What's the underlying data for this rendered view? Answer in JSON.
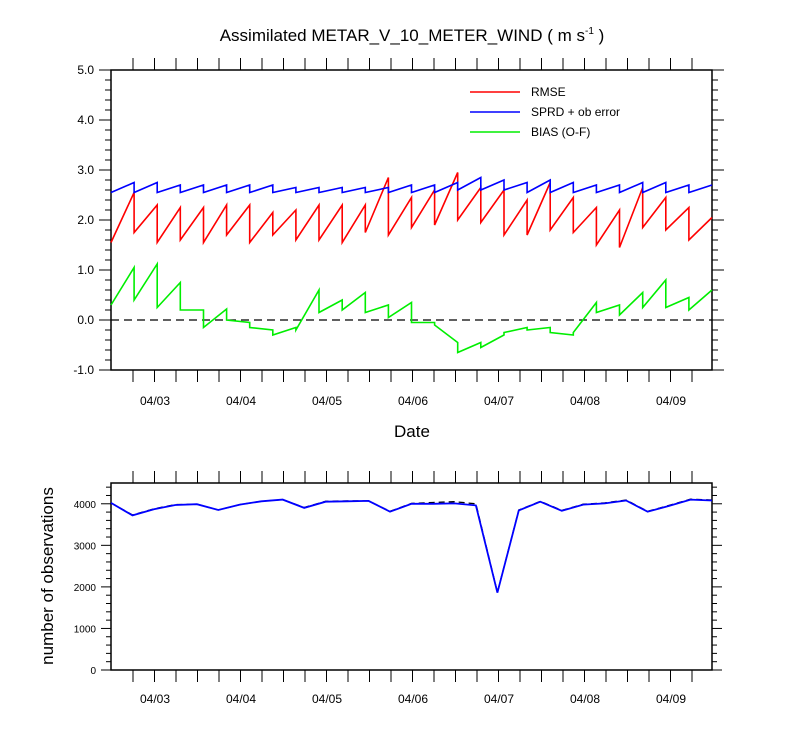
{
  "colors": {
    "rmse": "#ff0000",
    "sprd": "#0000ff",
    "bias": "#00ee00",
    "obs_used": "#0000ff",
    "obs_possible": "#000000",
    "zero_line": "#000000"
  },
  "chart_data": [
    {
      "type": "line",
      "title_prefix": "Assimilated METAR_V_10_METER_WIND ( m s",
      "title_sup": "-1",
      "title_suffix": " )",
      "xlabel": "Date",
      "ylabel": "",
      "ylim": [
        -1.0,
        5.0
      ],
      "yticks": [
        "5.0",
        "4.0",
        "3.0",
        "2.0",
        "1.0",
        "0.0",
        "-1.0"
      ],
      "xticks": [
        "04/03",
        "04/04",
        "04/05",
        "04/06",
        "04/07",
        "04/08",
        "04/09"
      ],
      "legend": [
        "RMSE",
        "SPRD + ob error",
        "BIAS (O-F)"
      ],
      "legend_position": "top-right",
      "zero_line": "dashed",
      "series": [
        {
          "name": "RMSE",
          "values": [
            1.55,
            2.55,
            1.75,
            2.3,
            1.55,
            2.25,
            1.6,
            2.25,
            1.55,
            2.3,
            1.7,
            2.3,
            1.55,
            2.15,
            1.7,
            2.2,
            1.6,
            2.3,
            1.6,
            2.3,
            1.55,
            2.3,
            1.75,
            2.85,
            1.7,
            2.45,
            1.85,
            2.6,
            1.9,
            2.95,
            2.0,
            2.65,
            1.95,
            2.6,
            1.7,
            2.4,
            1.7,
            2.75,
            1.8,
            2.45,
            1.75,
            2.25,
            1.5,
            2.2,
            1.45,
            2.65,
            1.85,
            2.45,
            1.8,
            2.25,
            1.6,
            2.05
          ]
        },
        {
          "name": "SPRD + ob error",
          "values": [
            2.55,
            2.75,
            2.55,
            2.75,
            2.55,
            2.7,
            2.55,
            2.7,
            2.55,
            2.7,
            2.55,
            2.7,
            2.55,
            2.7,
            2.55,
            2.65,
            2.55,
            2.65,
            2.55,
            2.65,
            2.55,
            2.65,
            2.55,
            2.65,
            2.55,
            2.7,
            2.55,
            2.7,
            2.55,
            2.75,
            2.6,
            2.85,
            2.6,
            2.8,
            2.6,
            2.75,
            2.55,
            2.8,
            2.55,
            2.75,
            2.55,
            2.7,
            2.55,
            2.7,
            2.55,
            2.75,
            2.55,
            2.75,
            2.55,
            2.7,
            2.55,
            2.7
          ]
        },
        {
          "name": "BIAS (O-F)",
          "values": [
            0.3,
            1.05,
            0.4,
            1.12,
            0.25,
            0.75,
            0.2,
            0.2,
            -0.15,
            0.22,
            0.0,
            -0.05,
            -0.15,
            -0.2,
            -0.3,
            -0.15,
            -0.2,
            0.6,
            0.15,
            0.4,
            0.2,
            0.55,
            0.15,
            0.3,
            0.05,
            0.35,
            -0.05,
            -0.05,
            -0.1,
            -0.45,
            -0.65,
            -0.45,
            -0.55,
            -0.3,
            -0.25,
            -0.15,
            -0.2,
            -0.15,
            -0.25,
            -0.3,
            -0.25,
            0.35,
            0.15,
            0.3,
            0.1,
            0.55,
            0.25,
            0.8,
            0.25,
            0.45,
            0.2,
            0.6
          ]
        }
      ]
    },
    {
      "type": "line",
      "ylabel": "number of observations",
      "ylim": [
        0,
        4500
      ],
      "yticks": [
        "4000",
        "3000",
        "2000",
        "1000",
        "0"
      ],
      "xticks": [
        "04/03",
        "04/04",
        "04/05",
        "04/06",
        "04/07",
        "04/08",
        "04/09"
      ],
      "series": [
        {
          "name": "",
          "style": "dashed",
          "values": [
            4020,
            3730,
            3880,
            3980,
            3990,
            3850,
            3980,
            4060,
            4100,
            3910,
            4060,
            4070,
            4070,
            3820,
            4010,
            4030,
            4050,
            4000,
            1870,
            3850,
            4060,
            3840,
            3990,
            4020,
            4090,
            3820,
            3960,
            4110,
            4090
          ]
        },
        {
          "name": "",
          "style": "solid",
          "values": [
            4020,
            3720,
            3870,
            3970,
            3990,
            3850,
            3980,
            4060,
            4100,
            3900,
            4050,
            4060,
            4070,
            3810,
            4000,
            4000,
            4010,
            3960,
            1860,
            3840,
            4050,
            3830,
            3980,
            4010,
            4080,
            3810,
            3950,
            4100,
            4080
          ]
        }
      ]
    }
  ]
}
